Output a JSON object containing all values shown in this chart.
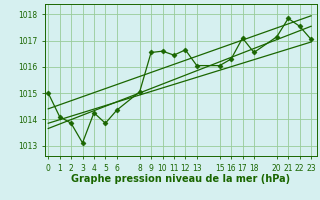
{
  "title": "Graphe pression niveau de la mer (hPa)",
  "bg_color": "#d6f0f0",
  "grid_color": "#99cc99",
  "line_color": "#1a6600",
  "x_ticks": [
    0,
    1,
    2,
    3,
    4,
    5,
    6,
    8,
    9,
    10,
    11,
    12,
    13,
    15,
    16,
    17,
    18,
    20,
    21,
    22,
    23
  ],
  "xlim": [
    -0.3,
    23.5
  ],
  "ylim": [
    1012.6,
    1018.4
  ],
  "yticks": [
    1013,
    1014,
    1015,
    1016,
    1017,
    1018
  ],
  "main_x": [
    0,
    1,
    2,
    3,
    4,
    5,
    6,
    8,
    9,
    10,
    11,
    12,
    13,
    15,
    16,
    17,
    18,
    20,
    21,
    22,
    23
  ],
  "main_y": [
    1015.0,
    1014.1,
    1013.85,
    1013.1,
    1014.25,
    1013.85,
    1014.35,
    1015.05,
    1016.55,
    1016.6,
    1016.45,
    1016.65,
    1016.05,
    1016.05,
    1016.3,
    1017.1,
    1016.55,
    1017.15,
    1017.85,
    1017.55,
    1017.05
  ],
  "trend1_x": [
    0,
    23
  ],
  "trend1_y": [
    1013.85,
    1016.95
  ],
  "trend2_x": [
    0,
    23
  ],
  "trend2_y": [
    1013.65,
    1017.55
  ],
  "trend3_x": [
    0,
    23
  ],
  "trend3_y": [
    1014.4,
    1017.95
  ],
  "font_size": 7.0,
  "tick_fontsize": 5.5
}
